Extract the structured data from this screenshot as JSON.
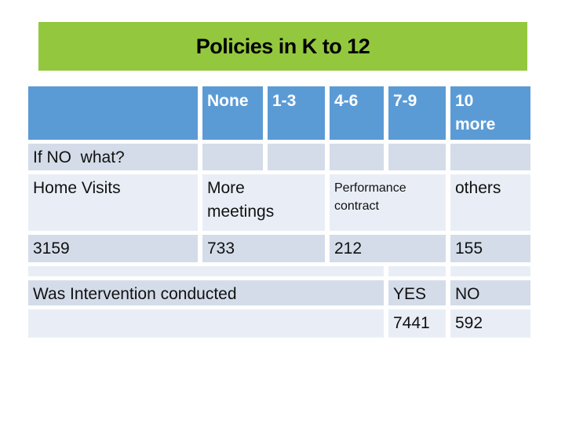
{
  "slide": {
    "title": "Policies in K to 12"
  },
  "colors": {
    "title_banner_green": "#93c83e",
    "header_blue": "#5b9bd5",
    "row_band_dark": "#d4dce9",
    "row_band_light": "#e9eef6",
    "background": "#ffffff",
    "title_text": "#000000",
    "header_text": "#ffffff",
    "body_text": "#111111"
  },
  "table": {
    "header": {
      "blank": "",
      "none": "None",
      "range_1_3": "1-3",
      "range_4_6": "4-6",
      "range_7_9": "7-9",
      "range_10_more": "10 more"
    },
    "if_no_row": {
      "label": "If NO  what?"
    },
    "intervention_row": {
      "home_visits": "Home Visits",
      "more_meetings": "More meetings",
      "performance_contract": "Performance contract",
      "others": "others"
    },
    "counts_row": {
      "home_visits": "3159",
      "more_meetings": "733",
      "performance_contract": "212",
      "others": "155"
    },
    "question_row": {
      "label": "Was Intervention conducted",
      "yes": "YES",
      "no": "NO"
    },
    "answers_row": {
      "yes": "7441",
      "no": "592"
    }
  }
}
